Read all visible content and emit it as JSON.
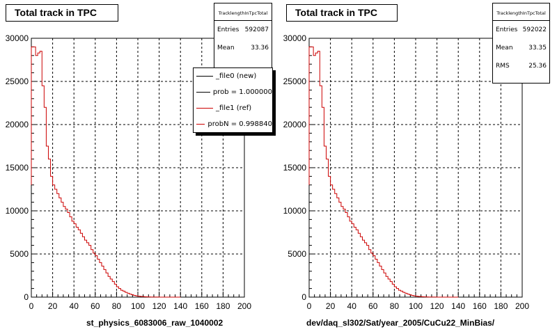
{
  "chart_data": [
    {
      "type": "line",
      "title": "Total track in TPC",
      "xlabel": "st_physics_6083006_raw_1040002",
      "ylabel": "",
      "xlim": [
        0,
        200
      ],
      "ylim": [
        0,
        30000
      ],
      "xticks": [
        "0",
        "20",
        "40",
        "60",
        "80",
        "100",
        "120",
        "140",
        "160",
        "180",
        "200"
      ],
      "yticks": [
        "0",
        "5000",
        "10000",
        "15000",
        "20000",
        "25000",
        "30000"
      ],
      "grid": true,
      "stats": {
        "name": "TracklengthInTpcTotal",
        "rows": [
          {
            "label": "Entries",
            "value": "592087"
          },
          {
            "label": "Mean",
            "value": "33.36"
          }
        ]
      },
      "legend": {
        "placement": "top-right",
        "entries": [
          {
            "label": "_file0 (new)",
            "color": "#000000"
          },
          {
            "label": "prob = 1.000000",
            "color": "#000000"
          },
          {
            "label": "_file1 (ref)",
            "color": "#cc0000"
          },
          {
            "label": "probN = 0.998840",
            "color": "#cc0000"
          }
        ]
      },
      "series": [
        {
          "name": "_file1 (ref)",
          "color": "#cc0000",
          "bin_width": 2,
          "x": [
            0,
            2,
            4,
            6,
            8,
            10,
            12,
            14,
            16,
            18,
            20,
            22,
            24,
            26,
            28,
            30,
            32,
            34,
            36,
            38,
            40,
            42,
            44,
            46,
            48,
            50,
            52,
            54,
            56,
            58,
            60,
            62,
            64,
            66,
            68,
            70,
            72,
            74,
            76,
            78,
            80,
            82,
            84,
            86,
            88,
            90,
            92,
            94,
            96,
            98,
            100,
            102,
            104,
            106,
            108,
            110,
            112,
            114,
            116,
            118,
            120,
            122,
            124,
            126,
            128,
            130,
            132,
            134,
            136,
            138
          ],
          "values": [
            29000,
            29000,
            28000,
            28300,
            28500,
            24500,
            22000,
            17500,
            16000,
            14000,
            13000,
            12500,
            12000,
            11500,
            11000,
            10500,
            10200,
            9800,
            9300,
            8800,
            8500,
            8100,
            7800,
            7400,
            7000,
            6600,
            6300,
            6000,
            5500,
            5100,
            4800,
            4400,
            4000,
            3600,
            3200,
            2800,
            2400,
            2100,
            1800,
            1500,
            1200,
            1000,
            800,
            700,
            550,
            450,
            350,
            270,
            200,
            150,
            110,
            80,
            60,
            40,
            30,
            20,
            15,
            10,
            8,
            6,
            5,
            4,
            3,
            2,
            2,
            1,
            1,
            1,
            0,
            0
          ]
        }
      ],
      "notes": ""
    },
    {
      "type": "line",
      "title": "Total track in TPC",
      "xlabel": "dev/daq_sl302/Sat/year_2005/CuCu22_MinBias/",
      "ylabel": "",
      "xlim": [
        0,
        200
      ],
      "ylim": [
        0,
        30000
      ],
      "xticks": [
        "0",
        "20",
        "40",
        "60",
        "80",
        "100",
        "120",
        "140",
        "160",
        "180",
        "200"
      ],
      "yticks": [
        "0",
        "5000",
        "10000",
        "15000",
        "20000",
        "25000",
        "30000"
      ],
      "grid": true,
      "stats": {
        "name": "TracklengthInTpcTotal",
        "rows": [
          {
            "label": "Entries",
            "value": "592022"
          },
          {
            "label": "Mean",
            "value": "33.35"
          },
          {
            "label": "RMS",
            "value": "25.36"
          }
        ]
      },
      "series": [
        {
          "color": "#cc0000",
          "bin_width": 2,
          "x": [
            0,
            2,
            4,
            6,
            8,
            10,
            12,
            14,
            16,
            18,
            20,
            22,
            24,
            26,
            28,
            30,
            32,
            34,
            36,
            38,
            40,
            42,
            44,
            46,
            48,
            50,
            52,
            54,
            56,
            58,
            60,
            62,
            64,
            66,
            68,
            70,
            72,
            74,
            76,
            78,
            80,
            82,
            84,
            86,
            88,
            90,
            92,
            94,
            96,
            98,
            100,
            102,
            104,
            106,
            108,
            110,
            112,
            114,
            116,
            118,
            120,
            122,
            124,
            126,
            128,
            130,
            132,
            134,
            136,
            138
          ],
          "values": [
            29000,
            29000,
            28000,
            28300,
            28500,
            24500,
            22000,
            17500,
            16000,
            14000,
            13000,
            12500,
            12000,
            11500,
            11000,
            10500,
            10200,
            9800,
            9300,
            8800,
            8500,
            8100,
            7800,
            7400,
            7000,
            6600,
            6300,
            6000,
            5500,
            5100,
            4800,
            4400,
            4000,
            3600,
            3200,
            2800,
            2400,
            2100,
            1800,
            1500,
            1200,
            1000,
            800,
            700,
            550,
            450,
            350,
            270,
            200,
            150,
            110,
            80,
            60,
            40,
            30,
            20,
            15,
            10,
            8,
            6,
            5,
            4,
            3,
            2,
            2,
            1,
            1,
            1,
            0,
            0
          ]
        }
      ]
    }
  ],
  "footer_text": ""
}
